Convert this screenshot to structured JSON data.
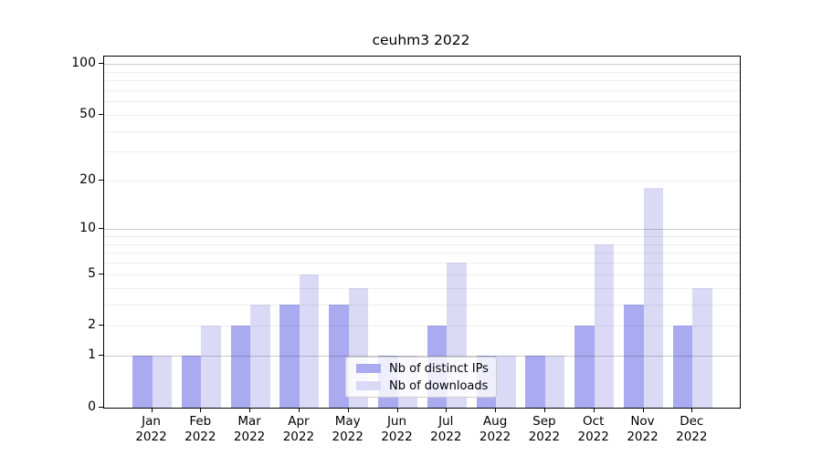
{
  "chart_data": {
    "type": "bar",
    "title": "ceuhm3 2022",
    "categories": [
      "Jan",
      "Feb",
      "Mar",
      "Apr",
      "May",
      "Jun",
      "Jul",
      "Aug",
      "Sep",
      "Oct",
      "Nov",
      "Dec"
    ],
    "category_year": "2022",
    "series": [
      {
        "name": "Nb of distinct IPs",
        "color": "#aaaaf0",
        "values": [
          1,
          1,
          2,
          3,
          3,
          1,
          2,
          1,
          1,
          2,
          3,
          2
        ]
      },
      {
        "name": "Nb of downloads",
        "color": "#dadaf6",
        "values": [
          1,
          2,
          3,
          5,
          4,
          1,
          6,
          1,
          1,
          8,
          18,
          4
        ]
      }
    ],
    "y_axis": {
      "scale": "log1p",
      "ylim": [
        0,
        100
      ],
      "tick_labels": [
        0,
        1,
        2,
        5,
        10,
        20,
        50,
        100
      ],
      "major_gridlines": [
        1,
        10,
        100
      ],
      "minor_gridlines": [
        2,
        3,
        4,
        5,
        6,
        7,
        8,
        9,
        20,
        30,
        40,
        50,
        60,
        70,
        80,
        90
      ]
    },
    "grid": true,
    "legend_position": "lower center"
  }
}
